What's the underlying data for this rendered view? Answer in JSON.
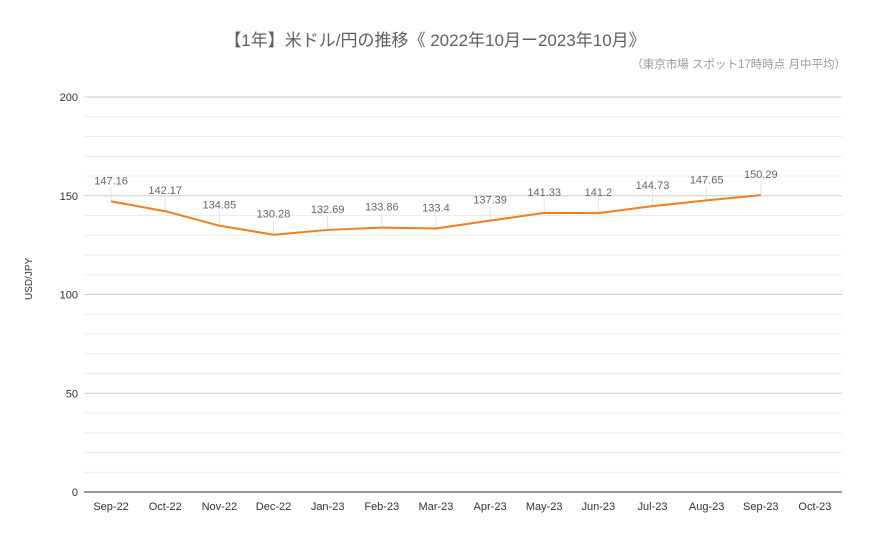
{
  "chart": {
    "title": "【1年】米ドル/円の推移《 2022年10月ー2023年10月》",
    "subtitle": "（東京市場 スポット17時時点 月中平均）",
    "ylabel": "USD/JPY",
    "line_color": "#f47c20"
  },
  "chart_data": {
    "type": "line",
    "title": "【1年】米ドル/円の推移《 2022年10月ー2023年10月》",
    "subtitle": "（東京市場 スポット17時時点 月中平均）",
    "xlabel": "",
    "ylabel": "USD/JPY",
    "ylim": [
      0,
      200
    ],
    "yticks": [
      0,
      50,
      100,
      150,
      200
    ],
    "grid": true,
    "minor_grid_step": 10,
    "legend": "none",
    "categories": [
      "Sep-22",
      "Oct-22",
      "Nov-22",
      "Dec-22",
      "Jan-23",
      "Feb-23",
      "Mar-23",
      "Apr-23",
      "May-23",
      "Jun-23",
      "Jul-23",
      "Aug-23",
      "Sep-23",
      "Oct-23"
    ],
    "series": [
      {
        "name": "USD/JPY",
        "color": "#f47c20",
        "values": [
          147.16,
          142.17,
          134.85,
          130.28,
          132.69,
          133.86,
          133.4,
          137.39,
          141.33,
          141.2,
          144.73,
          147.65,
          150.29,
          null
        ]
      }
    ]
  }
}
